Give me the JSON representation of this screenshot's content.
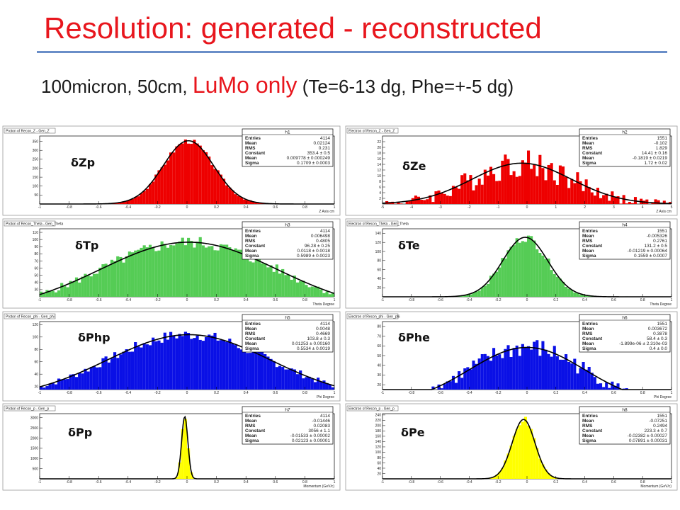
{
  "slide": {
    "title": "Resolution: generated - reconstructed",
    "subtitle_pre": "100micron, 50cm, ",
    "subtitle_highlight": "LuMo only",
    "subtitle_post": " (Te=6-13 dg, Phe=+-5 dg)"
  },
  "colors": {
    "red": "#ee0000",
    "green": "#55cc55",
    "blue": "#0a10e6",
    "yellow": "#ffff00",
    "title": "#e8161d",
    "rule": "#6a8ec8"
  },
  "stat_labels": [
    "Entries",
    "Mean",
    "RMS",
    "Constant",
    "Mean",
    "Sigma"
  ],
  "chart_data": [
    {
      "id": "h1",
      "type": "histogram",
      "pad_title": "Proton of Recon_Z - Gen_Z",
      "label": "δZp",
      "xlabel": "Z Axis cm",
      "color": "red",
      "xlim": [
        -1,
        1
      ],
      "ylim": [
        0,
        380
      ],
      "xticks": [
        -1,
        -0.8,
        -0.6,
        -0.4,
        -0.2,
        0,
        0.2,
        0.4,
        0.6,
        0.8,
        1
      ],
      "yticks": [
        50,
        100,
        150,
        200,
        250,
        300,
        350
      ],
      "stats": [
        "4114",
        "0.02124",
        "0.231",
        "353.4 ± 0.5",
        "0.009778 ± 0.000249",
        "0.1709 ± 0.0003"
      ],
      "fit": {
        "constant": 353.4,
        "mean": 0.0098,
        "sigma": 0.1709
      }
    },
    {
      "id": "h2",
      "type": "histogram",
      "pad_title": "Electron of Recon_Z - Gen_Z",
      "label": "δZe",
      "xlabel": "Z Axis cm",
      "color": "red",
      "xlim": [
        -5,
        5
      ],
      "ylim": [
        0,
        24
      ],
      "xticks": [
        -5,
        -4,
        -3,
        -2,
        -1,
        0,
        1,
        2,
        3,
        4,
        5
      ],
      "yticks": [
        2,
        4,
        6,
        8,
        10,
        12,
        14,
        16,
        18,
        20,
        22
      ],
      "stats": [
        "1551",
        "-0.102",
        "1.829",
        "14.41 ± 0.16",
        "-0.1819 ± 0.0219",
        "1.72 ± 0.02"
      ],
      "fit": {
        "constant": 14.41,
        "mean": -0.1819,
        "sigma": 1.72
      }
    },
    {
      "id": "h3",
      "type": "histogram",
      "pad_title": "Proton of Recon_Theta - Gen_Theta",
      "label": "δTp",
      "xlabel": "Theta Degree",
      "color": "green",
      "xlim": [
        -1,
        1
      ],
      "ylim": [
        20,
        115
      ],
      "xticks": [
        -1,
        -0.8,
        -0.6,
        -0.4,
        -0.2,
        0,
        0.2,
        0.4,
        0.6,
        0.8,
        1
      ],
      "yticks": [
        30,
        40,
        50,
        60,
        70,
        80,
        90,
        100,
        110
      ],
      "stats": [
        "4114",
        "0.006498",
        "0.4805",
        "96.28 ± 0.25",
        "0.0118 ± 0.0018",
        "0.5989 ± 0.0023"
      ],
      "fit": {
        "constant": 96.28,
        "mean": 0.0118,
        "sigma": 0.5989
      }
    },
    {
      "id": "h4",
      "type": "histogram",
      "pad_title": "Electron of Recon_Theta - Gen_Theta",
      "label": "δTe",
      "xlabel": "Theta Degree",
      "color": "green",
      "xlim": [
        -1,
        1
      ],
      "ylim": [
        0,
        150
      ],
      "xticks": [
        -1,
        -0.8,
        -0.6,
        -0.4,
        -0.2,
        0,
        0.2,
        0.4,
        0.6,
        0.8,
        1
      ],
      "yticks": [
        20,
        40,
        60,
        80,
        100,
        120,
        140
      ],
      "stats": [
        "1551",
        "-0.005326",
        "0.2761",
        "131.2 ± 0.5",
        "-0.01219 ± 0.00064",
        "0.1559 ± 0.0007"
      ],
      "fit": {
        "constant": 131.2,
        "mean": -0.0122,
        "sigma": 0.1559
      }
    },
    {
      "id": "h5",
      "type": "histogram",
      "pad_title": "Proton of Recon_phi - Gen_phi",
      "label": "δPhp",
      "xlabel": "Phi Degree",
      "color": "blue",
      "xlim": [
        -1,
        1
      ],
      "ylim": [
        15,
        125
      ],
      "xticks": [
        -1,
        -0.8,
        -0.6,
        -0.4,
        -0.2,
        0,
        0.2,
        0.4,
        0.6,
        0.8,
        1
      ],
      "yticks": [
        20,
        40,
        60,
        80,
        100,
        120
      ],
      "stats": [
        "4114",
        "0.0048",
        "0.4669",
        "103.8 ± 0.3",
        "0.01253 ± 0.00160",
        "0.5534 ± 0.0019"
      ],
      "fit": {
        "constant": 103.8,
        "mean": 0.0125,
        "sigma": 0.5534
      }
    },
    {
      "id": "h6",
      "type": "histogram",
      "pad_title": "Electron of Recon_phi - Gen_phi",
      "label": "δPhe",
      "xlabel": "Phi Degree",
      "color": "blue",
      "xlim": [
        -1,
        1
      ],
      "ylim": [
        15,
        85
      ],
      "xticks": [
        -1,
        -0.8,
        -0.6,
        -0.4,
        -0.2,
        0,
        0.2,
        0.4,
        0.6,
        0.8,
        1
      ],
      "yticks": [
        20,
        30,
        40,
        50,
        60,
        70,
        80
      ],
      "stats": [
        "1551",
        "0.003672",
        "0.3878",
        "58.4 ± 0.3",
        "-1.899e-06 ± 2.310e-03",
        "0.4 ± 0.0"
      ],
      "fit": {
        "constant": 58.4,
        "mean": 0.0,
        "sigma": 0.4
      }
    },
    {
      "id": "h7",
      "type": "histogram",
      "pad_title": "Proton of Recon_p - Gen_p",
      "label": "δPp",
      "xlabel": "Momentum (GeV/c)",
      "color": "yellow",
      "xlim": [
        -1,
        1
      ],
      "ylim": [
        0,
        3200
      ],
      "xticks": [
        -1,
        -0.8,
        -0.6,
        -0.4,
        -0.2,
        0,
        0.2,
        0.4,
        0.6,
        0.8,
        1
      ],
      "yticks": [
        500,
        1000,
        1500,
        2000,
        2500,
        3000
      ],
      "stats": [
        "4114",
        "-0.01446",
        "0.02083",
        "3056 ± 1.1",
        "-0.01533 ± 0.00002",
        "0.02123 ± 0.00001"
      ],
      "fit": {
        "constant": 3056,
        "mean": -0.0153,
        "sigma": 0.0212
      }
    },
    {
      "id": "h8",
      "type": "histogram",
      "pad_title": "Electron of Recon_p - Gen_p",
      "label": "δPe",
      "xlabel": "Momentum (GeV/c)",
      "color": "yellow",
      "xlim": [
        -1,
        1
      ],
      "ylim": [
        0,
        245
      ],
      "xticks": [
        -1,
        -0.8,
        -0.6,
        -0.4,
        -0.2,
        0,
        0.2,
        0.4,
        0.6,
        0.8,
        1
      ],
      "yticks": [
        20,
        40,
        60,
        80,
        100,
        120,
        140,
        160,
        180,
        200,
        220,
        240
      ],
      "stats": [
        "1551",
        "-0.07251",
        "0.2494",
        "223.3 ± 0.7",
        "-0.02382 ± 0.00027",
        "0.07891 ± 0.00031"
      ],
      "fit": {
        "constant": 223.3,
        "mean": -0.0238,
        "sigma": 0.0789
      }
    }
  ]
}
